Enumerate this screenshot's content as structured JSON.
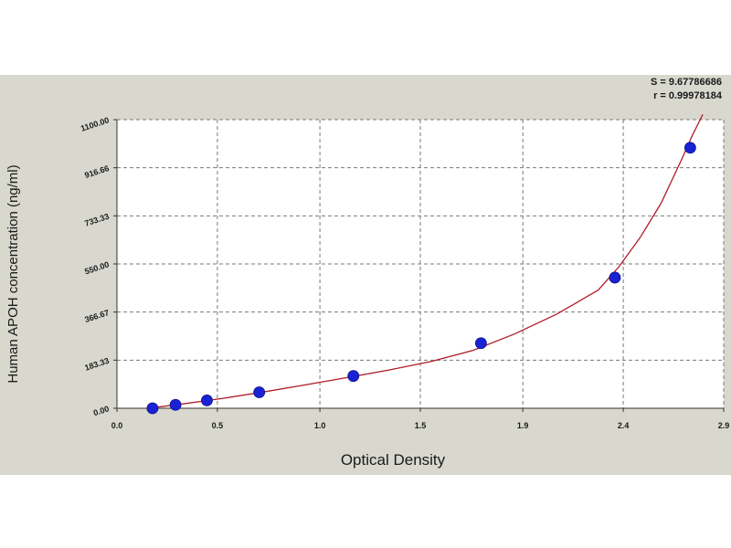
{
  "chart_data": {
    "type": "scatter",
    "xlabel": "Optical Density",
    "ylabel": "Human APOH concentration (ng/ml)",
    "stats": [
      "S = 9.67786686",
      "r = 0.99978184"
    ],
    "x_ticks": [
      "0.0",
      "0.5",
      "1.0",
      "1.5",
      "1.9",
      "2.4",
      "2.9"
    ],
    "x_tick_values": [
      0.0,
      0.48,
      0.97,
      1.45,
      1.94,
      2.42,
      2.9
    ],
    "y_ticks": [
      "0.00",
      "183.33",
      "366.67",
      "550.00",
      "733.33",
      "916.66",
      "1100.00"
    ],
    "y_tick_values": [
      0,
      183.33,
      366.67,
      550,
      733.33,
      916.66,
      1100
    ],
    "xlim": [
      0,
      2.9
    ],
    "ylim": [
      0,
      1100
    ],
    "grid": true,
    "points": [
      {
        "x": 0.17,
        "y": 0
      },
      {
        "x": 0.28,
        "y": 13
      },
      {
        "x": 0.43,
        "y": 30
      },
      {
        "x": 0.68,
        "y": 61
      },
      {
        "x": 1.13,
        "y": 123
      },
      {
        "x": 1.74,
        "y": 248
      },
      {
        "x": 2.38,
        "y": 498
      },
      {
        "x": 2.74,
        "y": 993
      }
    ],
    "fit_curve": {
      "x": [
        0.15,
        0.3,
        0.5,
        0.7,
        0.9,
        1.1,
        1.3,
        1.5,
        1.7,
        1.9,
        2.1,
        2.3,
        2.4,
        2.5,
        2.6,
        2.7,
        2.75,
        2.8
      ],
      "y": [
        0,
        15,
        37,
        62,
        89,
        117,
        146,
        178,
        220,
        283,
        358,
        450,
        540,
        650,
        780,
        950,
        1040,
        1120
      ]
    },
    "marker_color": "#1a22d6",
    "curve_color": "#b01c2a",
    "grid_color": "#7a7a7a"
  }
}
